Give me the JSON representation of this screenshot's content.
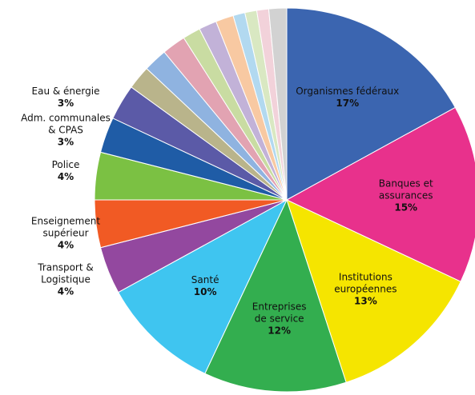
{
  "chart_data": {
    "type": "pie",
    "categories": [
      "Organismes fédéraux",
      "Banques et assurances",
      "Institutions\neuropéennes",
      "Entreprises\nde service",
      "Santé",
      "Transport &\nLogistique",
      "Enseignement\nsupérieur",
      "Police",
      "Adm. communales\n& CPAS",
      "Eau & énergie",
      null,
      null,
      null,
      null,
      null,
      null,
      null,
      null,
      null,
      null
    ],
    "values": [
      17,
      15,
      13,
      12,
      10,
      4,
      4,
      4,
      3,
      3,
      2,
      2,
      2,
      1.5,
      1.5,
      1.5,
      1,
      1,
      1,
      1.5
    ],
    "value_labels": [
      "17%",
      "15%",
      "13%",
      "12%",
      "10%",
      "4%",
      "4%",
      "4%",
      "3%",
      "3%",
      null,
      null,
      null,
      null,
      null,
      null,
      null,
      null,
      null,
      null
    ],
    "colors": [
      "#3b65b0",
      "#e8318c",
      "#f5e500",
      "#33ae4f",
      "#3fc5f0",
      "#93489f",
      "#f15a24",
      "#7bc143",
      "#1f5ca6",
      "#5b5aa7",
      "#b9b48b",
      "#8fb3e0",
      "#e2a3b2",
      "#c9dca2",
      "#c2b2d8",
      "#f8c9a2",
      "#b2d9f0",
      "#d9e8c2",
      "#f2d2da",
      "#d2d2d2"
    ]
  }
}
